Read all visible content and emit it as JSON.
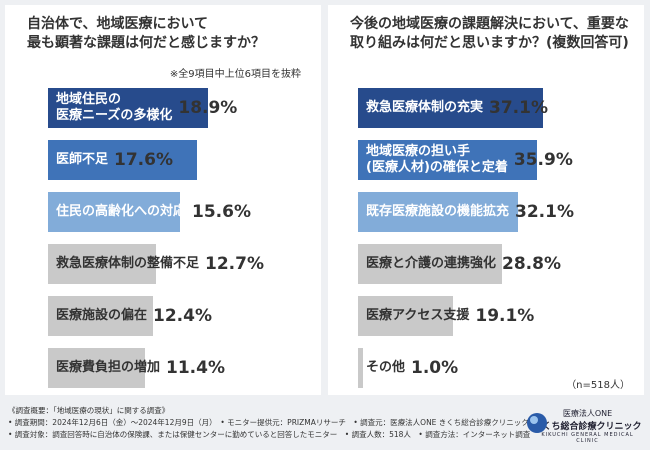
{
  "chart_data": [
    {
      "type": "bar",
      "orientation": "horizontal",
      "title": [
        "自治体で、地域医療において",
        "最も顕著な課題は何だと感じますか？"
      ],
      "note": "※全9項目中上位6項目を抜粋",
      "categories": [
        "地域住民の\n医療ニーズの多様化",
        "医師不足",
        "住民の高齢化への対応",
        "救急医療体制の整備不足",
        "医療施設の偏在",
        "医療費負担の増加"
      ],
      "values": [
        18.9,
        17.6,
        15.6,
        12.7,
        12.4,
        11.4
      ],
      "value_labels": [
        "18.9%",
        "17.6%",
        "15.6%",
        "12.7%",
        "12.4%",
        "11.4%"
      ],
      "colors": [
        "#274b8c",
        "#3f73b8",
        "#82acd9",
        "#c9c9c9",
        "#c9c9c9",
        "#c9c9c9"
      ]
    },
    {
      "type": "bar",
      "orientation": "horizontal",
      "title": [
        "今後の地域医療の課題解決において、重要な",
        "取り組みは何だと思いますか？(複数回答可)"
      ],
      "categories": [
        "救急医療体制の充実",
        "地域医療の担い手\n(医療人材)の確保と定着",
        "既存医療施設の機能拡充",
        "医療と介護の連携強化",
        "医療アクセス支援",
        "その他"
      ],
      "values": [
        37.1,
        35.9,
        32.1,
        28.8,
        19.1,
        1.0
      ],
      "value_labels": [
        "37.1%",
        "35.9%",
        "32.1%",
        "28.8%",
        "19.1%",
        "1.0%"
      ],
      "colors": [
        "#274b8c",
        "#3f73b8",
        "#82acd9",
        "#c9c9c9",
        "#c9c9c9",
        "#c9c9c9"
      ],
      "sample": "（n=518人）"
    }
  ],
  "footer": [
    "《調査概要：「地域医療の現状」に関する調査》",
    "• 調査期間：2024年12月6日（金）〜2024年12月9日（月）　• モニター提供元：PRIZMAリサーチ　• 調査元：医療法人ONE きくち総合診療クリニック",
    "• 調査対象：調査回答時に自治体の保険課、または保健センターに勤めていると回答したモニター　• 調査人数：518人　• 調査方法：インターネット調査"
  ],
  "logo": {
    "name": "医療法人ONE",
    "clinic": "きくち総合診療クリニック",
    "english": "KIKUCHI GENERAL MEDICAL CLINIC"
  }
}
